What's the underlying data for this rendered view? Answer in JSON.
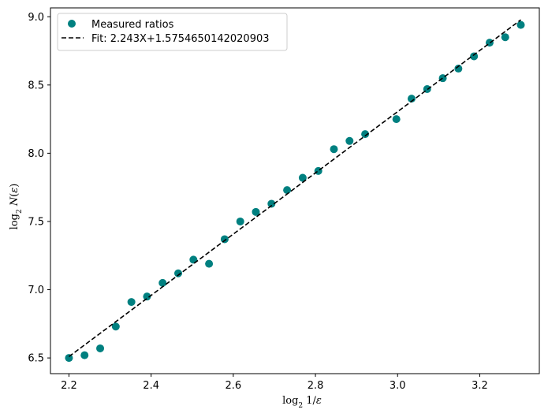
{
  "chart_data": {
    "type": "scatter",
    "xlabel": "log₂ 1/ε",
    "ylabel": "log₂ N(ε)",
    "xlim": [
      2.155,
      3.345
    ],
    "ylim": [
      6.385,
      9.065
    ],
    "x_ticks": [
      2.2,
      2.4,
      2.6,
      2.8,
      3.0,
      3.2
    ],
    "x_tick_labels": [
      "2.2",
      "2.4",
      "2.6",
      "2.8",
      "3.0",
      "3.2"
    ],
    "y_ticks": [
      6.5,
      7.0,
      7.5,
      8.0,
      8.5,
      9.0
    ],
    "y_tick_labels": [
      "6.5",
      "7.0",
      "7.5",
      "8.0",
      "8.5",
      "9.0"
    ],
    "grid": false,
    "legend_position": "top-left",
    "series": [
      {
        "name": "Measured ratios",
        "kind": "scatter",
        "color": "#008080",
        "points": [
          [
            2.2,
            6.5
          ],
          [
            2.238,
            6.52
          ],
          [
            2.276,
            6.57
          ],
          [
            2.314,
            6.73
          ],
          [
            2.352,
            6.91
          ],
          [
            2.39,
            6.95
          ],
          [
            2.428,
            7.05
          ],
          [
            2.466,
            7.12
          ],
          [
            2.503,
            7.22
          ],
          [
            2.541,
            7.19
          ],
          [
            2.579,
            7.37
          ],
          [
            2.617,
            7.5
          ],
          [
            2.655,
            7.57
          ],
          [
            2.693,
            7.63
          ],
          [
            2.731,
            7.73
          ],
          [
            2.769,
            7.82
          ],
          [
            2.807,
            7.87
          ],
          [
            2.845,
            8.03
          ],
          [
            2.883,
            8.09
          ],
          [
            2.921,
            8.14
          ],
          [
            2.997,
            8.25
          ],
          [
            3.034,
            8.4
          ],
          [
            3.072,
            8.47
          ],
          [
            3.11,
            8.55
          ],
          [
            3.148,
            8.62
          ],
          [
            3.186,
            8.71
          ],
          [
            3.224,
            8.81
          ],
          [
            3.262,
            8.85
          ],
          [
            3.3,
            8.94
          ]
        ]
      },
      {
        "name": "Fit: 2.243X+1.5754650142020903",
        "kind": "line",
        "color": "#000000",
        "dash": "dashed",
        "slope": 2.243,
        "intercept": 1.5754650142020903,
        "x_range": [
          2.2,
          3.3
        ]
      }
    ]
  }
}
